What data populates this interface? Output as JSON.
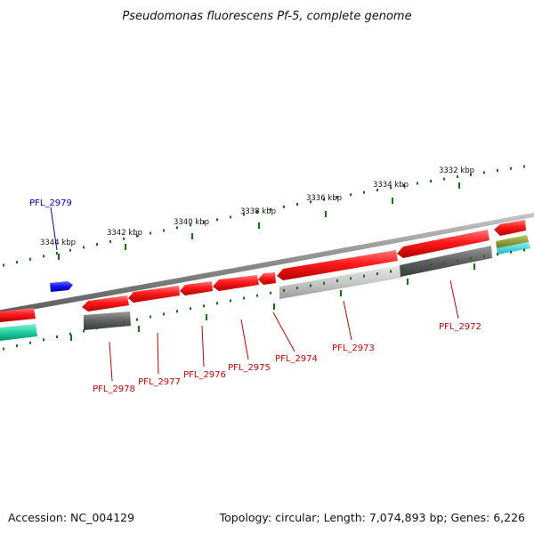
{
  "title": "Pseudomonas fluorescens Pf-5, complete genome",
  "footer": {
    "accession": "Accession: NC_004129",
    "summary": "Topology: circular; Length: 7,074,893 bp; Genes: 6,226"
  },
  "scale_labels": [
    "3332 kbp",
    "3334 kbp",
    "3336 kbp",
    "3338 kbp",
    "3340 kbp",
    "3342 kbp",
    "3344 kbp"
  ],
  "gene_labels": [
    {
      "text": "PFL_2979",
      "color": "#0000cc"
    },
    {
      "text": "PFL_2978",
      "color": "#cc0000"
    },
    {
      "text": "PFL_2977",
      "color": "#cc0000"
    },
    {
      "text": "PFL_2976",
      "color": "#cc0000"
    },
    {
      "text": "PFL_2975",
      "color": "#cc0000"
    },
    {
      "text": "PFL_2974",
      "color": "#cc0000"
    },
    {
      "text": "PFL_2973",
      "color": "#cc0000"
    },
    {
      "text": "PFL_2972",
      "color": "#cc0000"
    }
  ],
  "colors": {
    "forward_gene": "#1010ee",
    "reverse_gene": "#ff1010",
    "backbone": "#8c8c8c",
    "tick": "#0a7a0a",
    "feature_dark": "#606060",
    "feature_light": "#c8c8c8",
    "feature_teal": "#20d0a0",
    "feature_olive": "#8a9a30",
    "feature_cyan": "#40d8e0"
  }
}
